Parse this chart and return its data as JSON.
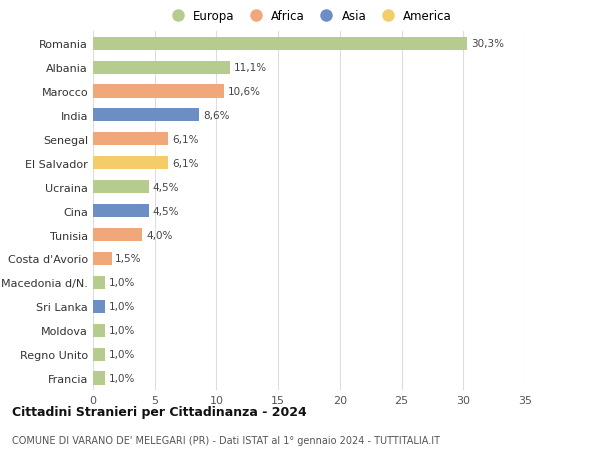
{
  "countries": [
    "Romania",
    "Albania",
    "Marocco",
    "India",
    "Senegal",
    "El Salvador",
    "Ucraina",
    "Cina",
    "Tunisia",
    "Costa d'Avorio",
    "Macedonia d/N.",
    "Sri Lanka",
    "Moldova",
    "Regno Unito",
    "Francia"
  ],
  "values": [
    30.3,
    11.1,
    10.6,
    8.6,
    6.1,
    6.1,
    4.5,
    4.5,
    4.0,
    1.5,
    1.0,
    1.0,
    1.0,
    1.0,
    1.0
  ],
  "labels": [
    "30,3%",
    "11,1%",
    "10,6%",
    "8,6%",
    "6,1%",
    "6,1%",
    "4,5%",
    "4,5%",
    "4,0%",
    "1,5%",
    "1,0%",
    "1,0%",
    "1,0%",
    "1,0%",
    "1,0%"
  ],
  "continents": [
    "Europa",
    "Europa",
    "Africa",
    "Asia",
    "Africa",
    "America",
    "Europa",
    "Asia",
    "Africa",
    "Africa",
    "Europa",
    "Asia",
    "Europa",
    "Europa",
    "Europa"
  ],
  "continent_colors": {
    "Europa": "#b5cc8e",
    "Africa": "#f0a87a",
    "Asia": "#6d8dc5",
    "America": "#f5cc6a"
  },
  "legend_order": [
    "Europa",
    "Africa",
    "Asia",
    "America"
  ],
  "title": "Cittadini Stranieri per Cittadinanza - 2024",
  "subtitle": "COMUNE DI VARANO DE' MELEGARI (PR) - Dati ISTAT al 1° gennaio 2024 - TUTTITALIA.IT",
  "xlim": [
    0,
    35
  ],
  "xticks": [
    0,
    5,
    10,
    15,
    20,
    25,
    30,
    35
  ],
  "bg_color": "#ffffff",
  "grid_color": "#dddddd",
  "bar_height": 0.55
}
